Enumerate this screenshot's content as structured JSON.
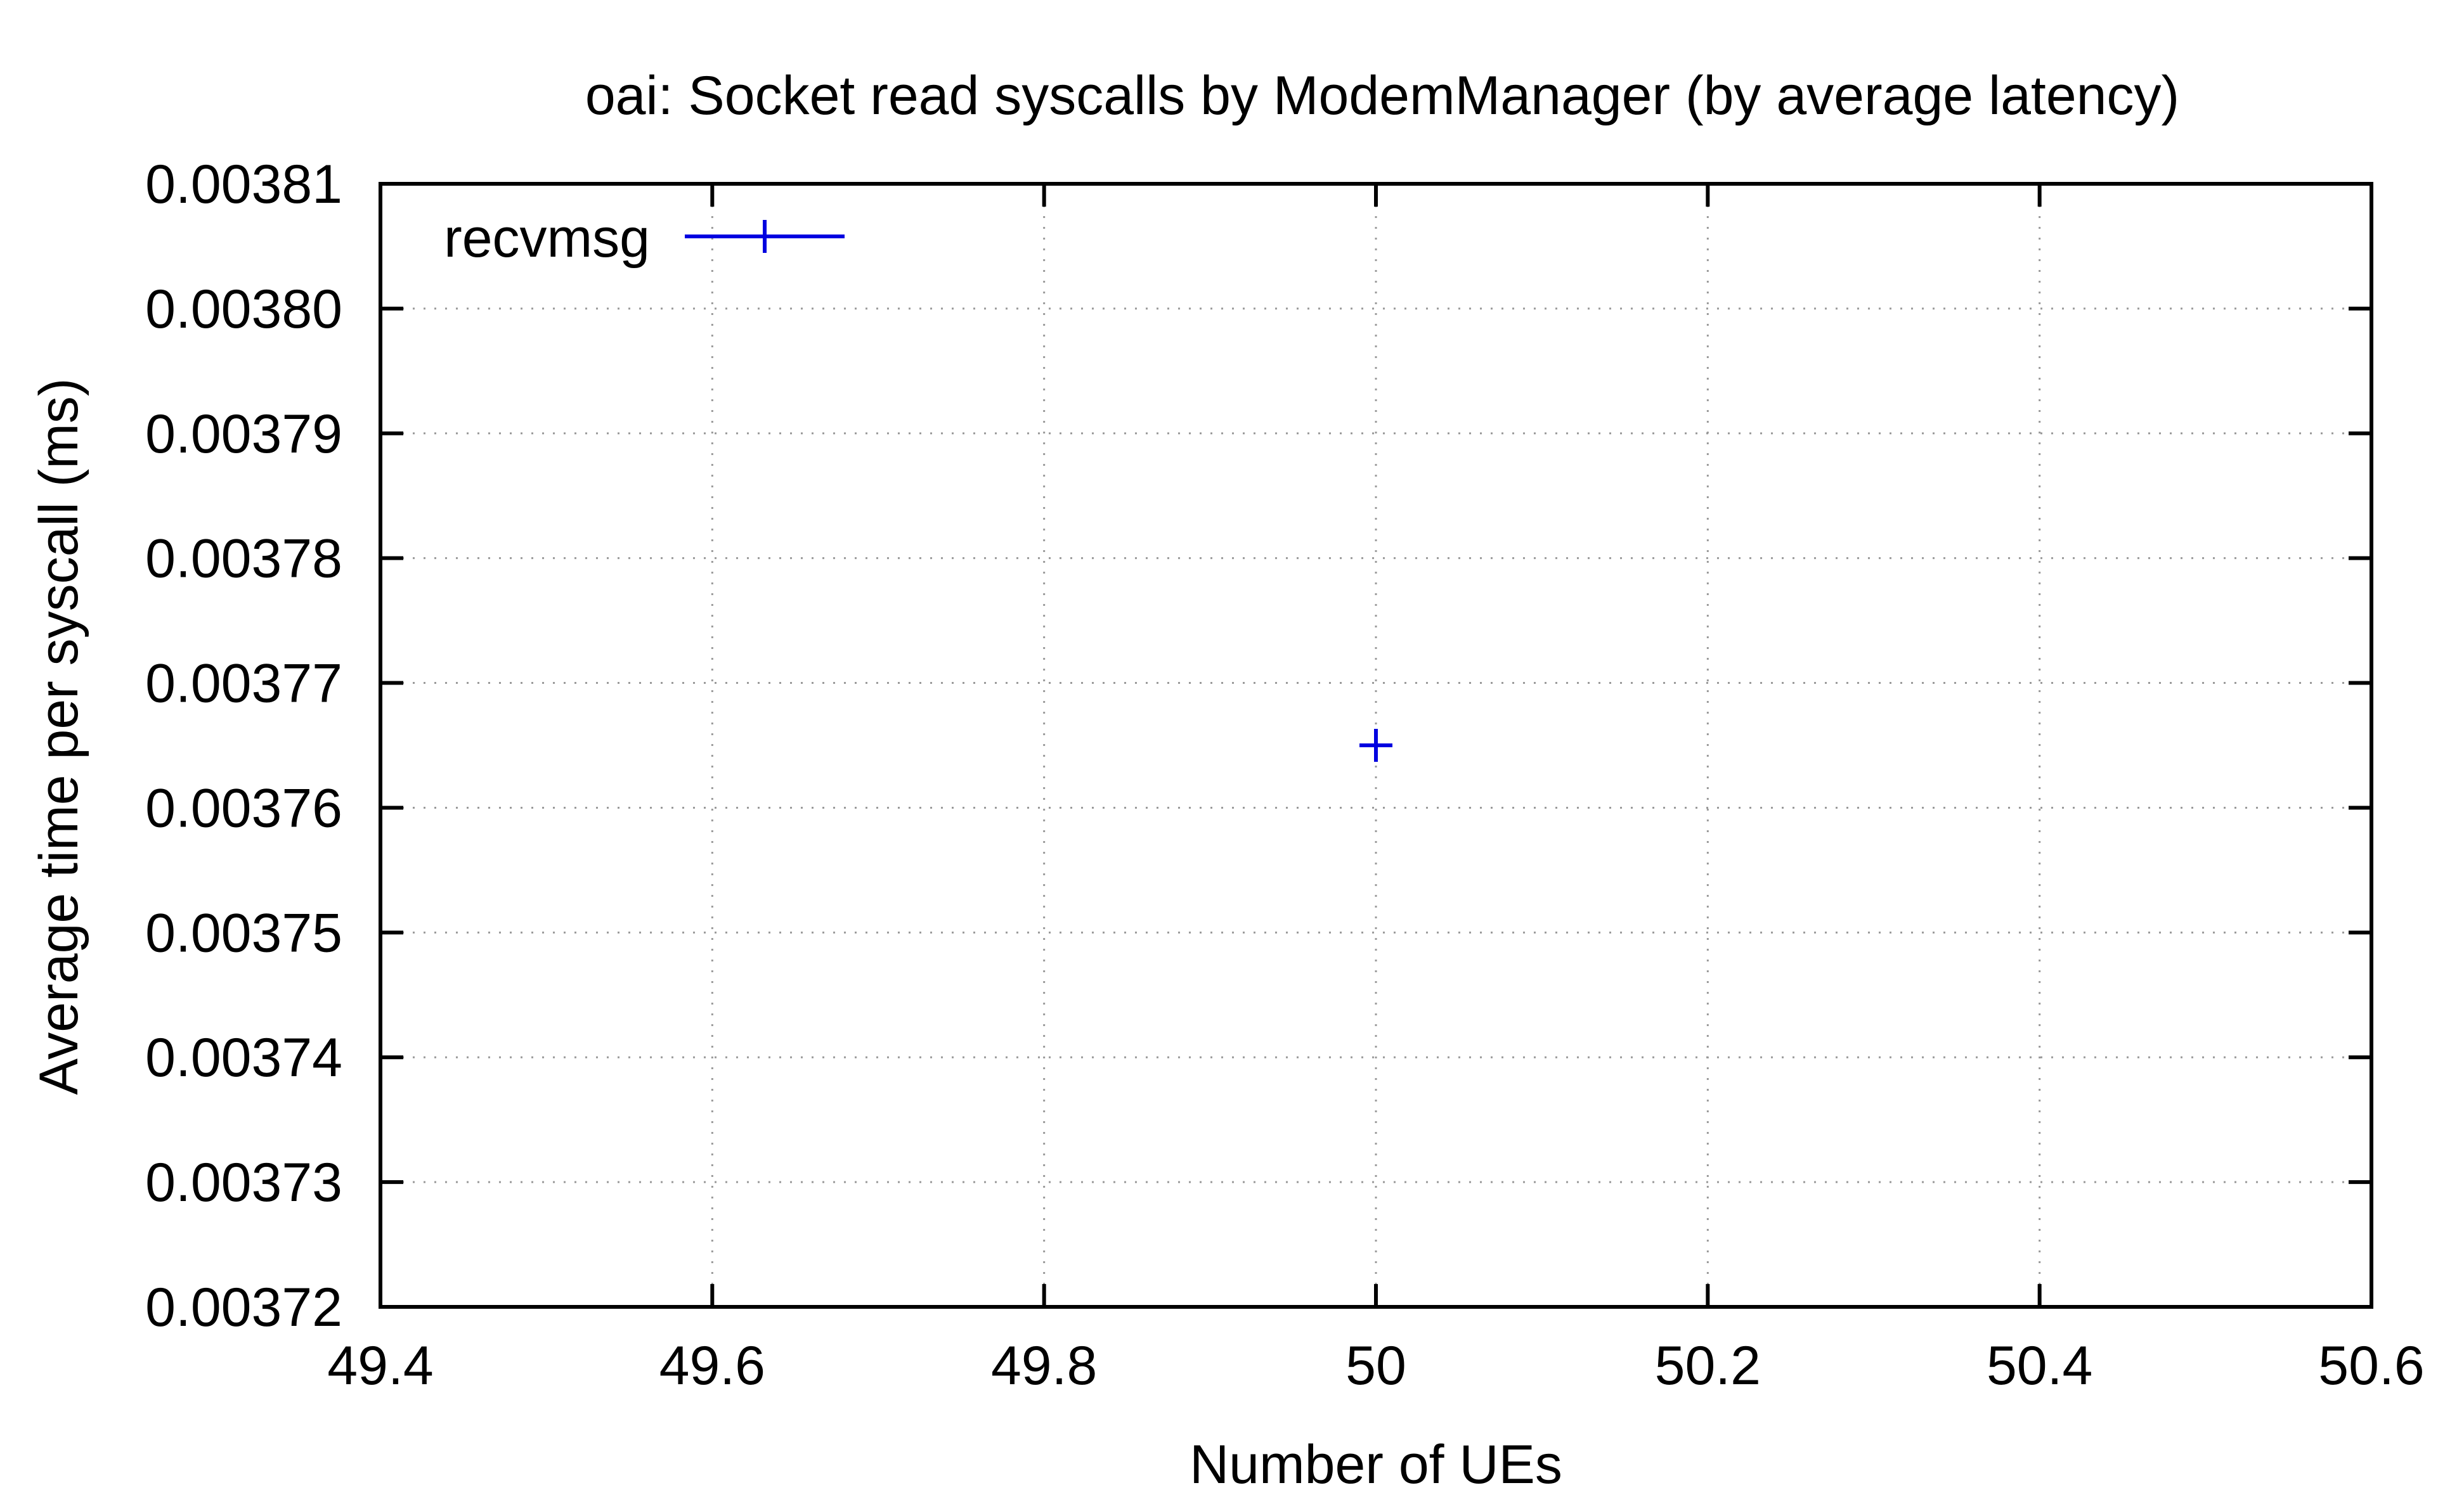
{
  "chart_data": {
    "type": "scatter",
    "title": "oai: Socket read syscalls by ModemManager (by average latency)",
    "xlabel": "Number of UEs",
    "ylabel": "Average time per syscall (ms)",
    "xlim": [
      49.4,
      50.6
    ],
    "ylim": [
      0.00372,
      0.00381
    ],
    "x_ticks": [
      "49.4",
      "49.6",
      "49.8",
      "50",
      "50.2",
      "50.4",
      "50.6"
    ],
    "y_ticks": [
      "0.00372",
      "0.00373",
      "0.00374",
      "0.00375",
      "0.00376",
      "0.00377",
      "0.00378",
      "0.00379",
      "0.00380",
      "0.00381"
    ],
    "grid": true,
    "legend_position": "top-left",
    "series": [
      {
        "name": "recvmsg",
        "color": "#0000e0",
        "marker": "plus",
        "points": [
          {
            "x": 50,
            "y": 0.003765
          }
        ]
      }
    ]
  }
}
